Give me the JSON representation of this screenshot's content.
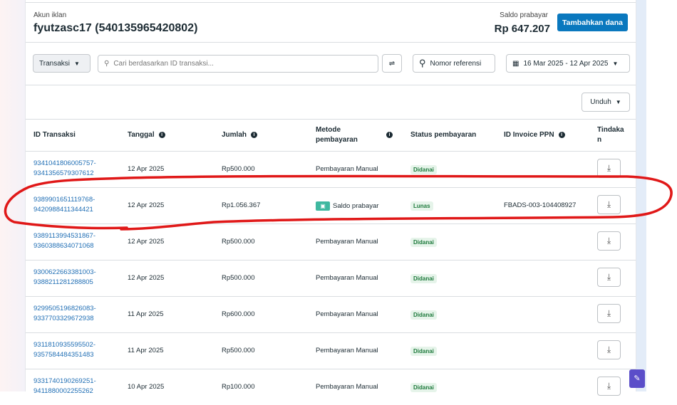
{
  "header": {
    "account_label": "Akun iklan",
    "account_name": "fyutzasc17 (540135965420802)",
    "balance_label": "Saldo prabayar",
    "balance": "Rp 647.207",
    "add_funds": "Tambahkan dana"
  },
  "toolbar": {
    "type_select": "Transaksi",
    "search_placeholder": "Cari berdasarkan ID transaksi...",
    "reference": "Nomor referensi",
    "date_range": "16 Mar 2025 - 12 Apr 2025",
    "download": "Unduh"
  },
  "table": {
    "columns": [
      "ID Transaksi",
      "Tanggal",
      "Jumlah",
      "Metode pembayaran",
      "Status pembayaran",
      "ID Invoice PPN",
      "Tindakan"
    ],
    "rows": [
      {
        "id1": "9341041806005757-",
        "id2": "9341356579307612",
        "date": "12 Apr 2025",
        "amount": "Rp500.000",
        "method": "Pembayaran Manual",
        "status": "Didanai",
        "invoice": ""
      },
      {
        "id1": "9389901651119768-",
        "id2": "9420988411344421",
        "date": "12 Apr 2025",
        "amount": "Rp1.056.367",
        "method": "Saldo prabayar",
        "status": "Lunas",
        "invoice": "FBADS-003-104408927"
      },
      {
        "id1": "9389113994531867-",
        "id2": "9360388634071068",
        "date": "12 Apr 2025",
        "amount": "Rp500.000",
        "method": "Pembayaran Manual",
        "status": "Didanai",
        "invoice": ""
      },
      {
        "id1": "9300622663381003-",
        "id2": "9388211281288805",
        "date": "12 Apr 2025",
        "amount": "Rp500.000",
        "method": "Pembayaran Manual",
        "status": "Didanai",
        "invoice": ""
      },
      {
        "id1": "9299505196826083-",
        "id2": "9337703329672938",
        "date": "11 Apr 2025",
        "amount": "Rp600.000",
        "method": "Pembayaran Manual",
        "status": "Didanai",
        "invoice": ""
      },
      {
        "id1": "9311810935595502-",
        "id2": "9357584484351483",
        "date": "11 Apr 2025",
        "amount": "Rp500.000",
        "method": "Pembayaran Manual",
        "status": "Didanai",
        "invoice": ""
      },
      {
        "id1": "9331740190269251-",
        "id2": "9411880002255262",
        "date": "10 Apr 2025",
        "amount": "Rp100.000",
        "method": "Pembayaran Manual",
        "status": "Didanai",
        "invoice": ""
      }
    ]
  },
  "colors": {
    "accent": "#0a78be",
    "link": "#216fb5",
    "annotation": "#e01818"
  }
}
